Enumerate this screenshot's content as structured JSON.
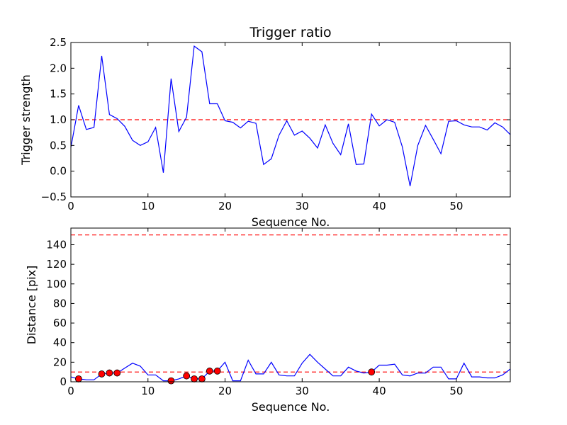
{
  "chart_data": [
    {
      "type": "line",
      "title": "Trigger ratio",
      "xlabel": "Sequence No.",
      "ylabel": "Trigger strength",
      "xlim": [
        0,
        57
      ],
      "ylim": [
        -0.5,
        2.5
      ],
      "xticks": [
        "0",
        "10",
        "20",
        "30",
        "40",
        "50"
      ],
      "yticks": [
        "−0.5",
        "0.0",
        "0.5",
        "1.0",
        "1.5",
        "2.0",
        "2.5"
      ],
      "series": [
        {
          "name": "trigger strength",
          "color": "#0000ff",
          "x": [
            0,
            1,
            2,
            3,
            4,
            5,
            6,
            7,
            8,
            9,
            10,
            11,
            12,
            13,
            14,
            15,
            16,
            17,
            18,
            19,
            20,
            21,
            22,
            23,
            24,
            25,
            26,
            27,
            28,
            29,
            30,
            31,
            32,
            33,
            34,
            35,
            36,
            37,
            38,
            39,
            40,
            41,
            42,
            43,
            44,
            45,
            46,
            47,
            48,
            49,
            50,
            51,
            52,
            53,
            54,
            55,
            56,
            57
          ],
          "y": [
            0.46,
            1.28,
            0.81,
            0.85,
            2.24,
            1.1,
            1.02,
            0.87,
            0.6,
            0.5,
            0.57,
            0.85,
            -0.03,
            1.8,
            0.77,
            1.05,
            2.43,
            2.32,
            1.31,
            1.31,
            0.98,
            0.95,
            0.84,
            0.97,
            0.93,
            0.13,
            0.24,
            0.7,
            0.98,
            0.7,
            0.78,
            0.64,
            0.45,
            0.9,
            0.54,
            0.32,
            0.92,
            0.13,
            0.14,
            1.11,
            0.88,
            1.0,
            0.95,
            0.47,
            -0.29,
            0.5,
            0.89,
            0.62,
            0.34,
            0.97,
            0.98,
            0.9,
            0.86,
            0.86,
            0.8,
            0.94,
            0.86,
            0.71
          ]
        }
      ],
      "threshold": {
        "y": 1.0,
        "color": "#ff0000",
        "style": "dashed"
      }
    },
    {
      "type": "line",
      "title": "",
      "xlabel": "Sequence No.",
      "ylabel": "Distance [pix]",
      "xlim": [
        0,
        57
      ],
      "ylim": [
        0,
        157
      ],
      "xticks": [
        "0",
        "10",
        "20",
        "30",
        "40",
        "50"
      ],
      "yticks": [
        "0",
        "20",
        "40",
        "60",
        "80",
        "100",
        "120",
        "140"
      ],
      "series": [
        {
          "name": "distance",
          "color": "#0000ff",
          "x": [
            0,
            1,
            2,
            3,
            4,
            5,
            6,
            7,
            8,
            9,
            10,
            11,
            12,
            13,
            14,
            15,
            16,
            17,
            18,
            19,
            20,
            21,
            22,
            23,
            24,
            25,
            26,
            27,
            28,
            29,
            30,
            31,
            32,
            33,
            34,
            35,
            36,
            37,
            38,
            39,
            40,
            41,
            42,
            43,
            44,
            45,
            46,
            47,
            48,
            49,
            50,
            51,
            52,
            53,
            54,
            55,
            56,
            57
          ],
          "y": [
            5,
            3,
            2,
            2,
            8,
            9,
            9,
            14,
            19,
            16,
            7,
            7,
            1,
            1,
            3,
            6,
            3,
            3,
            11,
            11,
            20,
            1,
            1,
            22,
            8,
            8,
            20,
            7,
            6,
            6,
            19,
            28,
            20,
            13,
            6,
            6,
            15,
            11,
            9,
            10,
            17,
            17,
            18,
            7,
            6,
            9,
            9,
            15,
            15,
            3,
            3,
            19,
            5,
            5,
            4,
            4,
            7,
            13
          ]
        }
      ],
      "markers": {
        "color": "#ff0000",
        "x": [
          1,
          4,
          5,
          6,
          13,
          15,
          16,
          17,
          18,
          19,
          39
        ],
        "y": [
          3,
          8,
          9,
          9,
          1,
          6,
          3,
          3,
          11,
          11,
          10
        ]
      },
      "thresholds": [
        {
          "y": 10,
          "color": "#ff0000",
          "style": "dashed"
        },
        {
          "y": 150,
          "color": "#ff0000",
          "style": "dashed"
        }
      ]
    }
  ]
}
